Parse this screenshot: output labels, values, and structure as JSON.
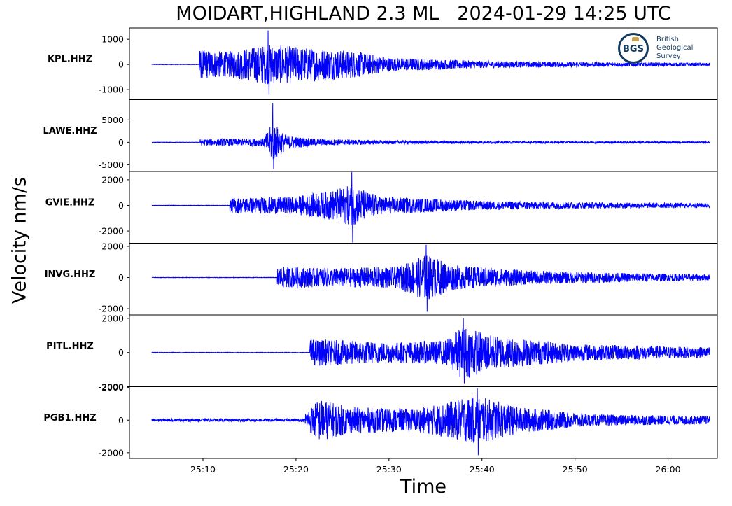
{
  "title": "MOIDART,HIGHLAND 2.3 ML   2024-01-29 14:25 UTC",
  "logo": {
    "abbr": "BGS",
    "line1": "British",
    "line2": "Geological",
    "line3": "Survey"
  },
  "chart_data": {
    "type": "line",
    "title": "MOIDART,HIGHLAND 2.3 ML   2024-01-29 14:25 UTC",
    "xlabel": "Time",
    "ylabel": "Velocity nm/s",
    "x_ticks": [
      "25:10",
      "25:20",
      "25:30",
      "25:40",
      "25:50",
      "26:00"
    ],
    "x_tick_seconds": [
      10,
      20,
      30,
      40,
      50,
      60
    ],
    "xlim_seconds": [
      2.1,
      65.3
    ],
    "data_range_seconds": [
      4.5,
      64.5
    ],
    "color": "#0000ff",
    "series": [
      {
        "name": "KPL.HHZ",
        "ylim": [
          -1400,
          1450
        ],
        "y_ticks": [
          1000,
          0,
          -1000
        ],
        "y_tick_labels": [
          "1000",
          "0",
          "-1000"
        ],
        "onset_s": 9.6,
        "pre_noise": 10,
        "segments": [
          {
            "t": 9.6,
            "amp": 600
          },
          {
            "t": 12.5,
            "amp": 500
          },
          {
            "t": 17.0,
            "amp": 800
          },
          {
            "t": 22.0,
            "amp": 650
          },
          {
            "t": 26.0,
            "amp": 550
          },
          {
            "t": 30.0,
            "amp": 280
          },
          {
            "t": 40.0,
            "amp": 140
          },
          {
            "t": 55.0,
            "amp": 80
          },
          {
            "t": 64.5,
            "amp": 60
          }
        ],
        "peak_max": 1350,
        "peak_min": -1200
      },
      {
        "name": "LAWE.HHZ",
        "ylim": [
          -6500,
          9500
        ],
        "y_ticks": [
          5000,
          0,
          -5000
        ],
        "y_tick_labels": [
          "5000",
          "0",
          "-5000"
        ],
        "onset_s": 9.7,
        "pre_noise": 40,
        "segments": [
          {
            "t": 9.7,
            "amp": 700
          },
          {
            "t": 16.5,
            "amp": 900
          },
          {
            "t": 17.5,
            "amp": 4500
          },
          {
            "t": 19.0,
            "amp": 1500
          },
          {
            "t": 22.0,
            "amp": 800
          },
          {
            "t": 30.0,
            "amp": 400
          },
          {
            "t": 45.0,
            "amp": 250
          },
          {
            "t": 64.5,
            "amp": 180
          }
        ],
        "peak_max": 8800,
        "peak_min": -5900
      },
      {
        "name": "GVIE.HHZ",
        "ylim": [
          -2950,
          2650
        ],
        "y_ticks": [
          2000,
          0,
          -2000
        ],
        "y_tick_labels": [
          "2000",
          "0",
          "-2000"
        ],
        "onset_s": 12.9,
        "pre_noise": 15,
        "segments": [
          {
            "t": 12.9,
            "amp": 600
          },
          {
            "t": 20.0,
            "amp": 700
          },
          {
            "t": 24.0,
            "amp": 1200
          },
          {
            "t": 26.0,
            "amp": 1600
          },
          {
            "t": 29.0,
            "amp": 700
          },
          {
            "t": 40.0,
            "amp": 350
          },
          {
            "t": 55.0,
            "amp": 220
          },
          {
            "t": 64.5,
            "amp": 180
          }
        ],
        "peak_max": 2600,
        "peak_min": -2900
      },
      {
        "name": "INVG.HHZ",
        "ylim": [
          -2400,
          2200
        ],
        "y_ticks": [
          2000,
          0,
          -2000
        ],
        "y_tick_labels": [
          "2000",
          "0",
          "-2000"
        ],
        "onset_s": 18.0,
        "pre_noise": 15,
        "segments": [
          {
            "t": 18.0,
            "amp": 700
          },
          {
            "t": 24.0,
            "amp": 600
          },
          {
            "t": 31.0,
            "amp": 700
          },
          {
            "t": 34.0,
            "amp": 1500
          },
          {
            "t": 37.0,
            "amp": 800
          },
          {
            "t": 45.0,
            "amp": 450
          },
          {
            "t": 55.0,
            "amp": 300
          },
          {
            "t": 64.5,
            "amp": 200
          }
        ],
        "peak_max": 2100,
        "peak_min": -2200
      },
      {
        "name": "PITL.HHZ",
        "ylim": [
          -2000,
          2200
        ],
        "y_ticks": [
          2000,
          0,
          -2000
        ],
        "y_tick_labels": [
          "2000",
          "0",
          "-2000"
        ],
        "onset_s": 21.5,
        "pre_noise": 15,
        "segments": [
          {
            "t": 21.5,
            "amp": 800
          },
          {
            "t": 30.0,
            "amp": 600
          },
          {
            "t": 36.0,
            "amp": 700
          },
          {
            "t": 38.0,
            "amp": 1600
          },
          {
            "t": 41.0,
            "amp": 1000
          },
          {
            "t": 50.0,
            "amp": 500
          },
          {
            "t": 64.5,
            "amp": 300
          }
        ],
        "peak_max": 2000,
        "peak_min": -1800
      },
      {
        "name": "PGB1.HHZ",
        "ylim": [
          -2350,
          2050
        ],
        "y_ticks": [
          2000,
          0,
          -2000
        ],
        "y_tick_labels": [
          "2000",
          "0",
          "-2000"
        ],
        "onset_s": 21.0,
        "pre_noise": 90,
        "segments": [
          {
            "t": 21.0,
            "amp": 500
          },
          {
            "t": 22.5,
            "amp": 1300
          },
          {
            "t": 26.0,
            "amp": 800
          },
          {
            "t": 33.0,
            "amp": 700
          },
          {
            "t": 39.5,
            "amp": 1500
          },
          {
            "t": 44.0,
            "amp": 800
          },
          {
            "t": 52.0,
            "amp": 350
          },
          {
            "t": 64.5,
            "amp": 250
          }
        ],
        "peak_max": 1950,
        "peak_min": -2150
      }
    ]
  }
}
